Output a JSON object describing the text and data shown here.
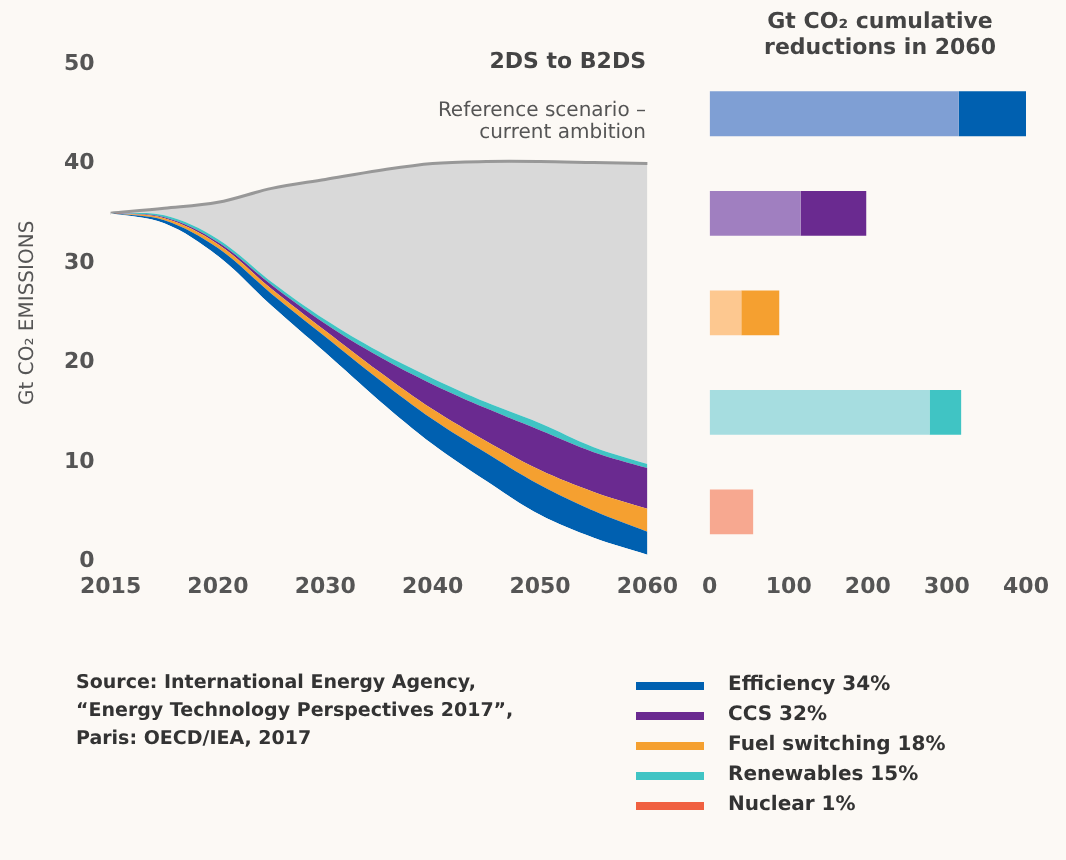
{
  "chart_data": [
    {
      "type": "area",
      "title": "2DS to B2DS",
      "ylabel": "Gt CO₂ EMISSIONS",
      "stacked": true,
      "categories": [
        "2015",
        null,
        "2020",
        null,
        "2030",
        null,
        "2040",
        null,
        "2050",
        null,
        "2060"
      ],
      "ylim": [
        0,
        50
      ],
      "yticks": [
        0,
        10,
        20,
        30,
        40,
        50
      ],
      "grid": false,
      "legend": false,
      "annotations": [
        "Reference scenario – current ambition",
        "Source: International Energy Agency, “Energy Technology Perspectives 2017”, Paris: OECD/IEA, 2017"
      ],
      "series": [
        {
          "color": "#fcf9f5",
          "values": [
            35,
            34.0,
            30.7,
            25.7,
            21,
            16.2,
            11.8,
            8.1,
            4.7,
            2.4,
            0.7
          ]
        },
        {
          "color": "#0060b0",
          "values": [
            0,
            0.3,
            0.8,
            1.2,
            1.6,
            2.1,
            2.5,
            2.8,
            3.0,
            2.7,
            2.3
          ]
        },
        {
          "color": "#f5a030",
          "values": [
            0,
            0.2,
            0.4,
            0.5,
            0.6,
            0.8,
            1.0,
            1.2,
            1.5,
            1.9,
            2.3
          ]
        },
        {
          "color": "#6a2a90",
          "values": [
            0,
            0.1,
            0.2,
            0.4,
            0.7,
            1.5,
            2.5,
            3.3,
            4.0,
            4.0,
            4.1
          ]
        },
        {
          "color": "#40c4c4",
          "values": [
            0,
            0.2,
            0.3,
            0.3,
            0.4,
            0.5,
            0.6,
            0.6,
            0.7,
            0.5,
            0.4
          ]
        },
        {
          "color": "#d9d9d9",
          "values": [
            0,
            0.7,
            3.7,
            9.4,
            14.1,
            18.2,
            21.6,
            24.2,
            26.3,
            28.6,
            30.2
          ]
        }
      ]
    },
    {
      "type": "bar",
      "orientation": "horizontal",
      "stacked": true,
      "title": "Gt CO₂ cumulative reductions in 2060",
      "categories": [
        null,
        null,
        null,
        null,
        null
      ],
      "xlim": [
        0,
        400
      ],
      "xticks": [
        0,
        100,
        200,
        300,
        400
      ],
      "grid": false,
      "legend": "bottom",
      "series": [
        {
          "colors": [
            "#7f9fd4",
            "#a07fc0",
            "#fdc890",
            "#a6dde0",
            "#f7a890"
          ],
          "values": [
            315,
            115,
            40,
            278,
            55
          ]
        },
        {
          "name": "Efficiency 34%",
          "color": "#0060b0",
          "values": [
            85,
            null,
            null,
            null,
            null
          ]
        },
        {
          "name": "CCS 32%",
          "color": "#6a2a90",
          "values": [
            null,
            83,
            null,
            null,
            null
          ]
        },
        {
          "name": "Fuel switching 18%",
          "color": "#f5a030",
          "values": [
            null,
            null,
            48,
            null,
            null
          ]
        },
        {
          "name": "Renewables 15%",
          "color": "#40c4c4",
          "values": [
            null,
            null,
            null,
            40,
            null
          ]
        },
        {
          "name": "Nuclear 1%",
          "color": "#f06040",
          "values": [
            null,
            null,
            null,
            null,
            null
          ]
        }
      ]
    }
  ]
}
